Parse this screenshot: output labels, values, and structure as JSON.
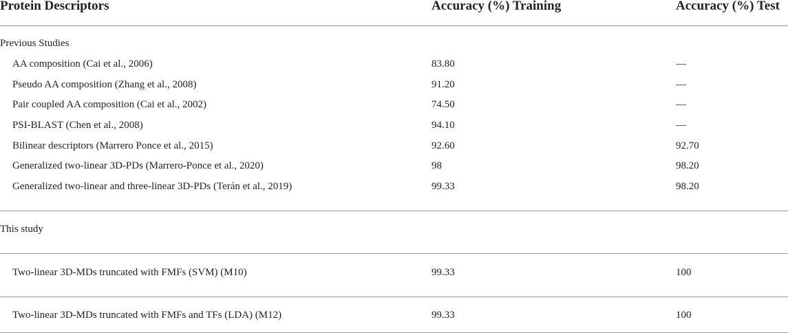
{
  "table": {
    "header": [
      "Protein Descriptors",
      "Accuracy (%) Training",
      "Accuracy (%) Test"
    ],
    "sections": [
      {
        "title": "Previous Studies",
        "rows": [
          [
            "AA composition (Cai et al., 2006)",
            "83.80",
            "—"
          ],
          [
            "Pseudo AA composition (Zhang et al., 2008)",
            "91.20",
            "—"
          ],
          [
            "Pair coupled AA composition (Cai et al., 2002)",
            "74.50",
            "—"
          ],
          [
            "PSI-BLAST (Chen et al., 2008)",
            "94.10",
            "—"
          ],
          [
            "Bilinear descriptors (Marrero Ponce et al., 2015)",
            "92.60",
            "92.70"
          ],
          [
            "Generalized two-linear 3D-PDs (Marrero-Ponce et al., 2020)",
            "98",
            "98.20"
          ],
          [
            "Generalized two-linear and three-linear 3D-PDs (Terán et al., 2019)",
            "99.33",
            "98.20"
          ]
        ]
      },
      {
        "title": "This study",
        "rows": [
          [
            "Two-linear 3D-MDs truncated with FMFs (SVM) (M10)",
            "99.33",
            "100"
          ],
          [
            "Two-linear 3D-MDs truncated with FMFs and TFs (LDA) (M12)",
            "99.33",
            "100"
          ]
        ]
      }
    ]
  }
}
